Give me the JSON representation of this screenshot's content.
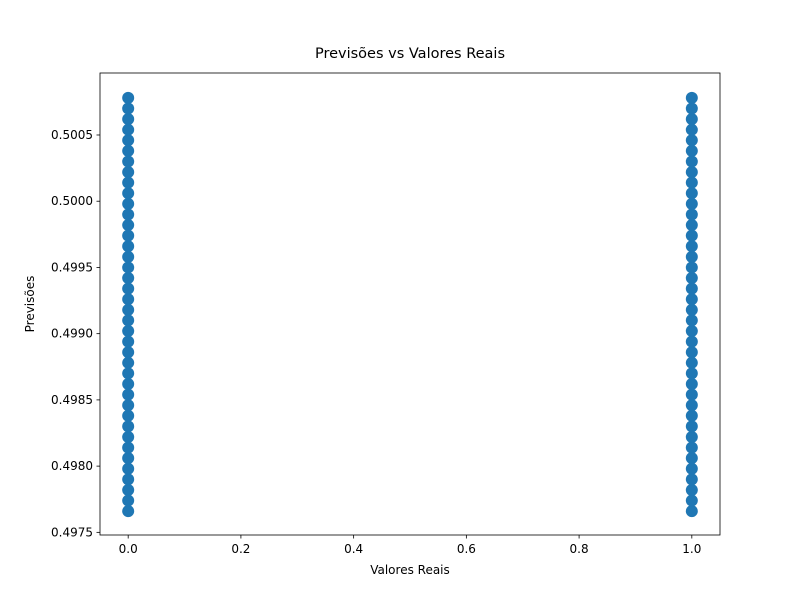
{
  "chart_data": {
    "type": "scatter",
    "title": "Previsões vs Valores Reais",
    "x_label": "Valores Reais",
    "y_label": "Previsões",
    "color": "#1f77b4",
    "x": [
      0,
      0,
      0,
      0,
      0,
      0,
      0,
      0,
      0,
      0,
      0,
      0,
      0,
      0,
      0,
      0,
      0,
      0,
      0,
      0,
      0,
      0,
      0,
      0,
      0,
      0,
      0,
      0,
      0,
      0,
      0,
      0,
      0,
      0,
      0,
      0,
      0,
      0,
      0,
      0,
      1,
      1,
      1,
      1,
      1,
      1,
      1,
      1,
      1,
      1,
      1,
      1,
      1,
      1,
      1,
      1,
      1,
      1,
      1,
      1,
      1,
      1,
      1,
      1,
      1,
      1,
      1,
      1,
      1,
      1,
      1,
      1,
      1,
      1,
      1,
      1,
      1,
      1,
      1,
      1
    ],
    "values": [
      0.49766,
      0.49774,
      0.49782,
      0.4979,
      0.49798,
      0.49806,
      0.49814,
      0.49822,
      0.4983,
      0.49838,
      0.49846,
      0.49854,
      0.49862,
      0.4987,
      0.49878,
      0.49886,
      0.49894,
      0.49902,
      0.4991,
      0.49918,
      0.49926,
      0.49934,
      0.49942,
      0.4995,
      0.49958,
      0.49966,
      0.49974,
      0.49982,
      0.4999,
      0.49998,
      0.50006,
      0.50014,
      0.50022,
      0.5003,
      0.50038,
      0.50046,
      0.50054,
      0.50062,
      0.5007,
      0.50078,
      0.49766,
      0.49774,
      0.49782,
      0.4979,
      0.49798,
      0.49806,
      0.49814,
      0.49822,
      0.4983,
      0.49838,
      0.49846,
      0.49854,
      0.49862,
      0.4987,
      0.49878,
      0.49886,
      0.49894,
      0.49902,
      0.4991,
      0.49918,
      0.49926,
      0.49934,
      0.49942,
      0.4995,
      0.49958,
      0.49966,
      0.49974,
      0.49982,
      0.4999,
      0.49998,
      0.50006,
      0.50014,
      0.50022,
      0.5003,
      0.50038,
      0.50046,
      0.50054,
      0.50062,
      0.5007,
      0.50078
    ],
    "xlim": [
      -0.05,
      1.05
    ],
    "ylim": [
      0.49748,
      0.500968
    ],
    "xticks": [
      {
        "value": 0,
        "label": "0.0"
      },
      0.2,
      0.4,
      0.6,
      0.8,
      {
        "value": 1,
        "label": "1.0"
      }
    ],
    "yticks": [
      0.4975,
      {
        "value": 0.498,
        "label": "0.4980"
      },
      0.4985,
      {
        "value": 0.499,
        "label": "0.4990"
      },
      0.4995,
      {
        "value": 0.5,
        "label": "0.5000"
      },
      0.5005
    ]
  }
}
